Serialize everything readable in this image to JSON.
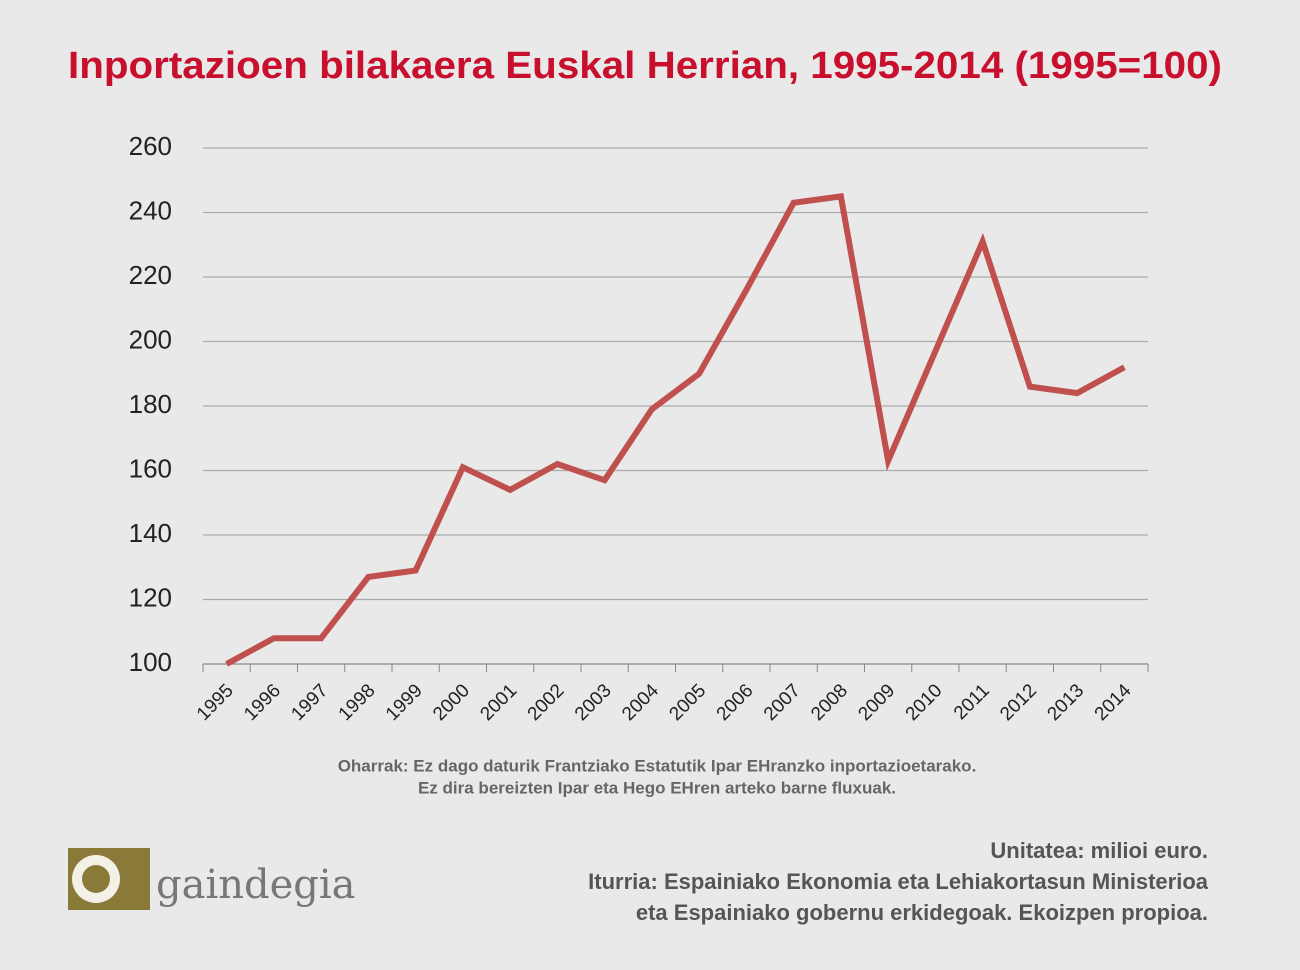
{
  "chart_data": {
    "type": "line",
    "title": "Inportazioen bilakaera Euskal Herrian, 1995-2014 (1995=100)",
    "categories": [
      "1995",
      "1996",
      "1997",
      "1998",
      "1999",
      "2000",
      "2001",
      "2002",
      "2003",
      "2004",
      "2005",
      "2006",
      "2007",
      "2008",
      "2009",
      "2010",
      "2011",
      "2012",
      "2013",
      "2014"
    ],
    "series": [
      {
        "color": "#c0504d",
        "values": [
          100,
          108,
          108,
          127,
          129,
          161,
          154,
          162,
          157,
          179,
          190,
          216,
          243,
          245,
          163,
          197,
          231,
          186,
          184,
          192
        ]
      }
    ],
    "ylim": [
      100,
      260
    ],
    "yticks": [
      100,
      120,
      140,
      160,
      180,
      200,
      220,
      240,
      260
    ],
    "grid": true
  },
  "notes": [
    "Oharrak: Ez dago daturik Frantziako Estatutik Ipar EHranzko inportazioetarako.",
    "Ez dira bereizten Ipar eta Hego EHren arteko barne fluxuak."
  ],
  "source": [
    "Unitatea: milioi euro.",
    "Iturria: Espainiako Ekonomia eta Lehiakortasun Ministerioa",
    "eta Espainiako gobernu erkidegoak. Ekoizpen propioa."
  ],
  "logo": "gaindegia"
}
